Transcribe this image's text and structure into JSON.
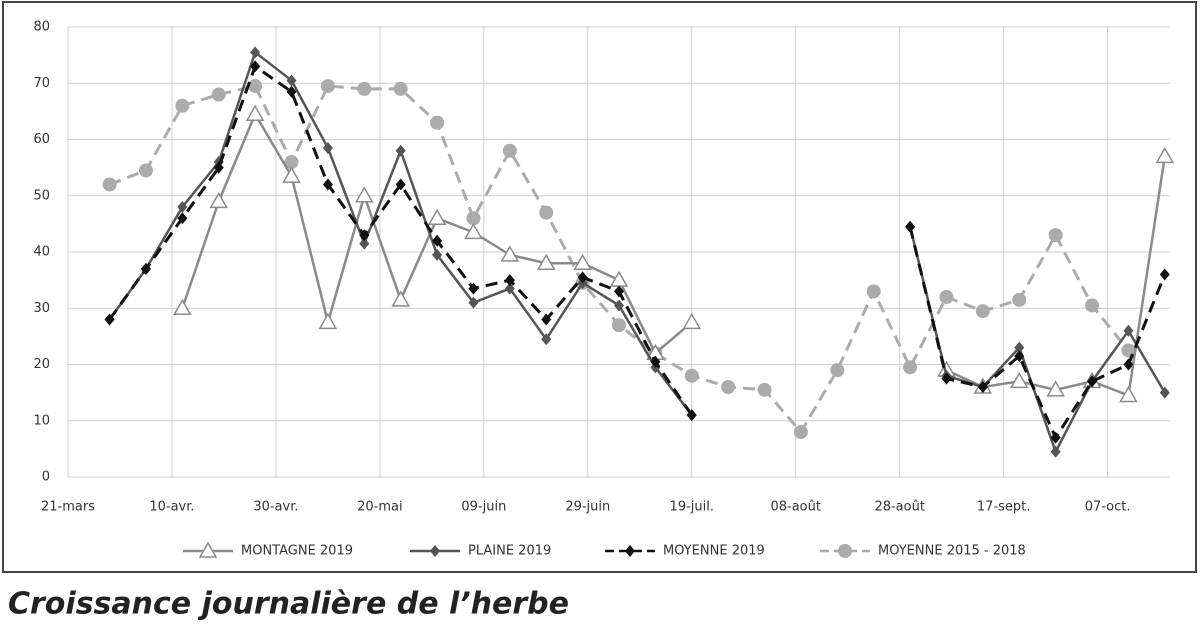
{
  "chart_data": {
    "type": "line",
    "title": "Croissance journalière de l’herbe",
    "xlim": [
      0,
      212
    ],
    "xticks": [
      {
        "value": 0,
        "label": "21-mars"
      },
      {
        "value": 20,
        "label": "10-avr."
      },
      {
        "value": 40,
        "label": "30-avr."
      },
      {
        "value": 60,
        "label": "20-mai"
      },
      {
        "value": 80,
        "label": "09-juin"
      },
      {
        "value": 100,
        "label": "29-juin"
      },
      {
        "value": 120,
        "label": "19-juil."
      },
      {
        "value": 140,
        "label": "08-août"
      },
      {
        "value": 160,
        "label": "28-août"
      },
      {
        "value": 180,
        "label": "17-sept."
      },
      {
        "value": 200,
        "label": "07-oct."
      }
    ],
    "ylim": [
      0,
      80
    ],
    "yticks": [
      0,
      10,
      20,
      30,
      40,
      50,
      60,
      70,
      80
    ],
    "grid": true,
    "x": [
      8,
      15,
      22,
      29,
      36,
      43,
      50,
      57,
      64,
      71,
      78,
      85,
      92,
      99,
      106,
      113,
      120,
      127,
      134,
      141,
      148,
      155,
      162,
      169,
      176,
      183,
      190,
      197,
      204,
      211
    ],
    "series": [
      {
        "name": "MONTAGNE 2019",
        "color": "#8a8a8a",
        "dash": "solid",
        "marker": "triangle",
        "values": [
          null,
          null,
          30,
          49,
          64.5,
          53.5,
          27.5,
          50,
          31.5,
          46,
          43.5,
          39.5,
          38,
          38,
          35,
          22,
          27.5,
          null,
          null,
          null,
          null,
          null,
          null,
          19,
          16,
          17,
          15.5,
          17,
          14.5,
          57
        ]
      },
      {
        "name": "PLAINE 2019",
        "color": "#555555",
        "dash": "solid",
        "marker": "diamond",
        "values": [
          28,
          37,
          48,
          56,
          75.5,
          70.5,
          58.5,
          41.5,
          58,
          39.5,
          31,
          33.5,
          24.5,
          34.5,
          30.5,
          19.5,
          11,
          null,
          null,
          null,
          null,
          null,
          44.5,
          18,
          16,
          23,
          4.5,
          17,
          26,
          15
        ]
      },
      {
        "name": "MOYENNE 2019",
        "color": "#111111",
        "dash": "dashed",
        "marker": "diamond",
        "values": [
          28,
          37,
          46,
          55,
          73,
          68.5,
          52,
          43,
          52,
          42,
          33.5,
          35,
          28,
          35.5,
          33,
          20.5,
          11,
          null,
          null,
          null,
          null,
          null,
          44.5,
          17.5,
          16,
          21.5,
          7,
          17,
          20,
          36
        ]
      },
      {
        "name": "MOYENNE 2015 - 2018",
        "color": "#ababab",
        "dash": "dashed",
        "marker": "circle",
        "values": [
          52,
          54.5,
          66,
          68,
          69.5,
          56,
          69.5,
          69,
          69,
          63,
          46,
          58,
          47,
          34.5,
          27,
          22,
          18,
          16,
          15.5,
          8,
          19,
          33,
          19.5,
          32,
          29.5,
          31.5,
          43,
          30.5,
          22.5,
          null
        ]
      }
    ]
  }
}
